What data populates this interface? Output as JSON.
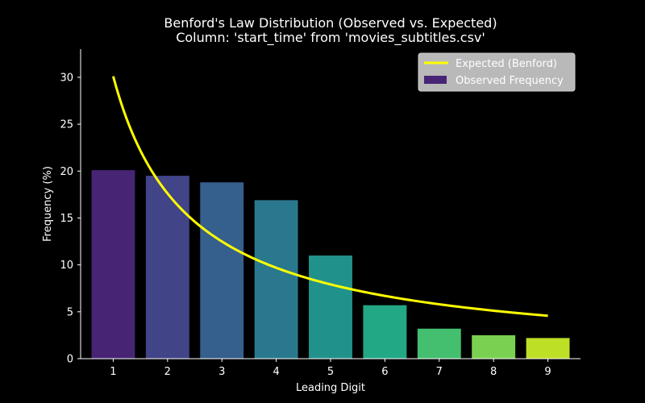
{
  "chart_data": {
    "type": "bar",
    "title_line1": "Benford's Law Distribution (Observed vs. Expected)",
    "title_line2": "Column: 'start_time' from 'movies_subtitles.csv'",
    "xlabel": "Leading Digit",
    "ylabel": "Frequency (%)",
    "categories": [
      "1",
      "2",
      "3",
      "4",
      "5",
      "6",
      "7",
      "8",
      "9"
    ],
    "x_ticks": [
      "1",
      "2",
      "3",
      "4",
      "5",
      "6",
      "7",
      "8",
      "9"
    ],
    "y_ticks": [
      0,
      5,
      10,
      15,
      20,
      25,
      30
    ],
    "ylim": [
      0,
      33
    ],
    "series": [
      {
        "name": "Observed Frequency",
        "kind": "bar",
        "values": [
          20.1,
          19.5,
          18.8,
          16.9,
          11.0,
          5.7,
          3.2,
          2.5,
          2.2
        ],
        "colors": [
          "#482475",
          "#414487",
          "#355f8d",
          "#2a788e",
          "#21918c",
          "#22a884",
          "#44bf70",
          "#7ad151",
          "#bddf26"
        ]
      },
      {
        "name": "Expected (Benford)",
        "kind": "line",
        "color": "#ffff00",
        "values": [
          30.1,
          17.6,
          12.5,
          9.7,
          7.9,
          6.7,
          5.8,
          5.1,
          4.6
        ]
      }
    ],
    "legend": {
      "placement": "top-right",
      "entries": [
        "Expected (Benford)",
        "Observed Frequency"
      ]
    }
  }
}
